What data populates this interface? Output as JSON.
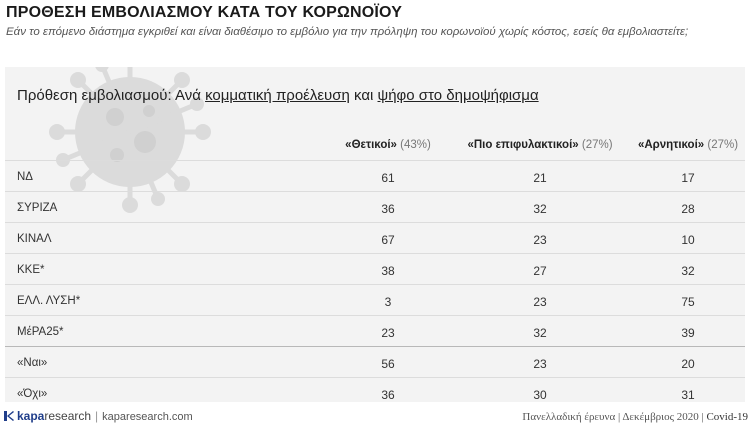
{
  "header": {
    "title": "ΠΡΟΘΕΣΗ ΕΜΒΟΛΙΑΣΜΟΥ ΚΑΤΑ ΤΟΥ ΚΟΡΩΝΟΪΟΥ",
    "subtitle": "Εάν το επόμενο διάστημα εγκριθεί και είναι διαθέσιμο το εμβόλιο για την πρόληψη του κορωνοϊού χωρίς κόστος, εσείς θα εμβολιαστείτε;"
  },
  "table_title": {
    "prefix": "Πρόθεση εμβολιασμού: Ανά ",
    "part1": "κομματική προέλευση",
    "mid": " και ",
    "part2": "ψήφο στο δημοψήφισμα"
  },
  "chart_data": {
    "type": "table",
    "columns": [
      {
        "name": "«Θετικοί»",
        "share": "(43%)"
      },
      {
        "name": "«Πιο επιφυλακτικοί»",
        "share": "(27%)"
      },
      {
        "name": "«Αρνητικοί»",
        "share": "(27%)"
      }
    ],
    "rows": [
      {
        "label": "ΝΔ",
        "values": [
          61,
          21,
          17
        ]
      },
      {
        "label": "ΣΥΡΙΖΑ",
        "values": [
          36,
          32,
          28
        ]
      },
      {
        "label": "ΚΙΝΑΛ",
        "values": [
          67,
          23,
          10
        ]
      },
      {
        "label": "ΚΚΕ*",
        "values": [
          38,
          27,
          32
        ]
      },
      {
        "label": "ΕΛΛ. ΛΥΣΗ*",
        "values": [
          3,
          23,
          75
        ]
      },
      {
        "label": "ΜέΡΑ25*",
        "values": [
          23,
          32,
          39
        ]
      },
      {
        "label": "«Ναι»",
        "values": [
          56,
          23,
          20
        ]
      },
      {
        "label": "«Όχι»",
        "values": [
          36,
          30,
          31
        ]
      }
    ]
  },
  "footer": {
    "brand_k": "kapa",
    "brand_rest": "research",
    "separator": "|",
    "site": "kaparesearch.com",
    "survey": "Πανελλαδική έρευνα | Δεκέμβριος 2020 | ",
    "topic": "Covid-19"
  },
  "colors": {
    "brand": "#1f3d8a",
    "panel": "#f3f3f3"
  }
}
